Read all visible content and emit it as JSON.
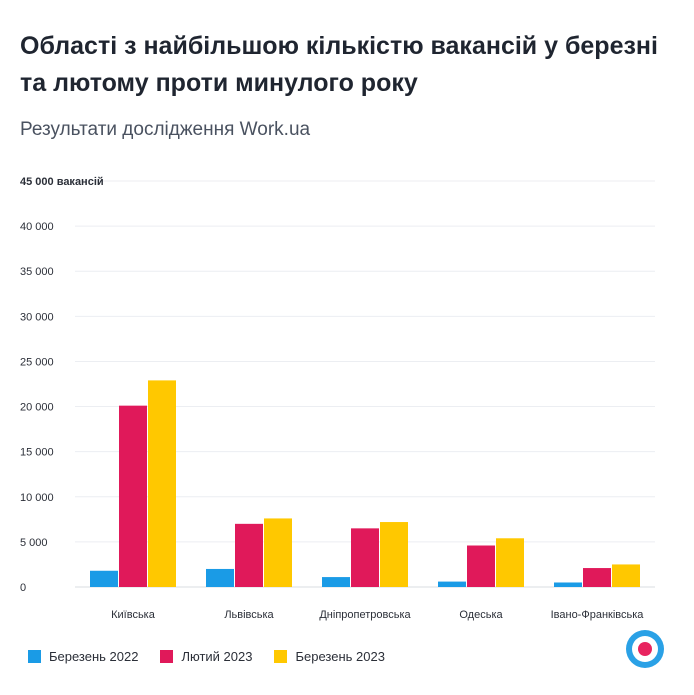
{
  "header": {
    "title": "Області з найбільшою кількістю вакансій у березні та лютому проти минулого року",
    "subtitle": "Результати дослідження Work.ua"
  },
  "chart_data": {
    "type": "bar",
    "categories": [
      "Київська",
      "Львівська",
      "Дніпропетровська",
      "Одеська",
      "Івано-Франківська"
    ],
    "series": [
      {
        "name": "Березень 2022",
        "color": "#1a9be6",
        "values": [
          1800,
          2000,
          1100,
          600,
          500
        ]
      },
      {
        "name": "Лютий 2023",
        "color": "#e0195a",
        "values": [
          20100,
          7000,
          6500,
          4600,
          2100
        ]
      },
      {
        "name": "Березень 2023",
        "color": "#ffc800",
        "values": [
          22900,
          7600,
          7200,
          5400,
          2500
        ]
      }
    ],
    "yticks": [
      "0",
      "5 000",
      "10 000",
      "15 000",
      "20 000",
      "25 000",
      "30 000",
      "35 000",
      "40 000",
      "45 000 вакансій"
    ],
    "ylim": [
      0,
      45000
    ],
    "grid": true,
    "legend_position": "bottom-left"
  }
}
